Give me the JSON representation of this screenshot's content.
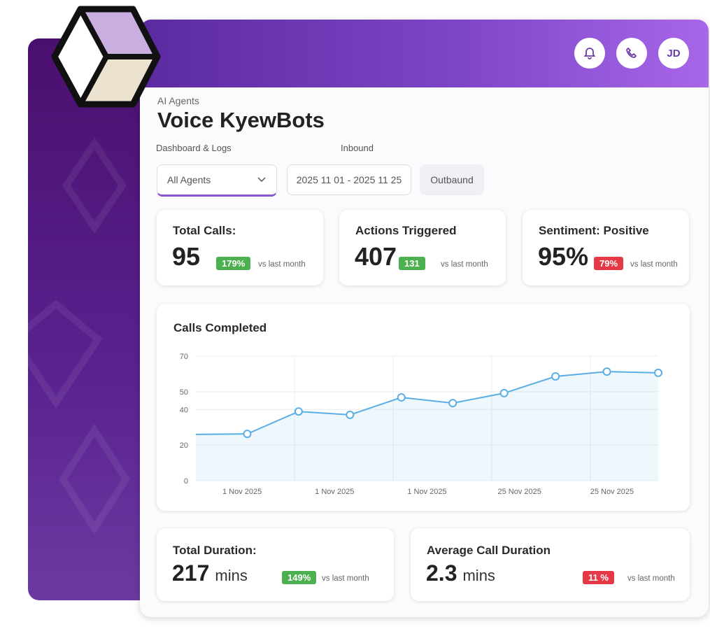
{
  "header": {
    "avatar": "JD"
  },
  "page": {
    "eyebrow": "AI Agents",
    "title": "Voice KyewBots",
    "tabs": [
      "Dashboard & Logs",
      "Inbound"
    ],
    "filters": {
      "agent": "All Agents",
      "date_range": "2025 11 01 - 2025 11 25",
      "direction": "Outbaund"
    }
  },
  "stats": [
    {
      "label": "Total Calls:",
      "value": "95",
      "badge": "179%",
      "badge_color": "#4caf50",
      "note": "vs last month"
    },
    {
      "label": "Actions Triggered",
      "value": "407",
      "badge": "131",
      "badge_color": "#4caf50",
      "note": "vs last month"
    },
    {
      "label": "Sentiment: Positive",
      "value": "95%",
      "badge": "79%",
      "badge_color": "#e53945",
      "note": "vs last month"
    }
  ],
  "chart_data": {
    "type": "line",
    "title": "Calls Completed",
    "values": [
      26,
      26.3,
      38.9,
      37,
      46.8,
      43.6,
      49.2,
      58.6,
      61.3,
      60.6
    ],
    "x_labels": [
      "1 Nov 2025",
      "1 Nov 2025",
      "1 Nov 2025",
      "25 Nov 2025",
      "25 Nov 2025"
    ],
    "ylim": [
      0,
      70
    ],
    "yticks": [
      0,
      20,
      40,
      50,
      70
    ],
    "color": "#5aaee6",
    "grid": true
  },
  "durations": [
    {
      "label": "Total Duration:",
      "value": "217",
      "unit": "mins",
      "badge": "149%",
      "badge_color": "#4caf50",
      "note": "vs last month"
    },
    {
      "label": "Average Call Duration",
      "value": "2.3",
      "unit": "mins",
      "badge": "11 %",
      "badge_color": "#e53945",
      "note": "vs last month"
    }
  ]
}
